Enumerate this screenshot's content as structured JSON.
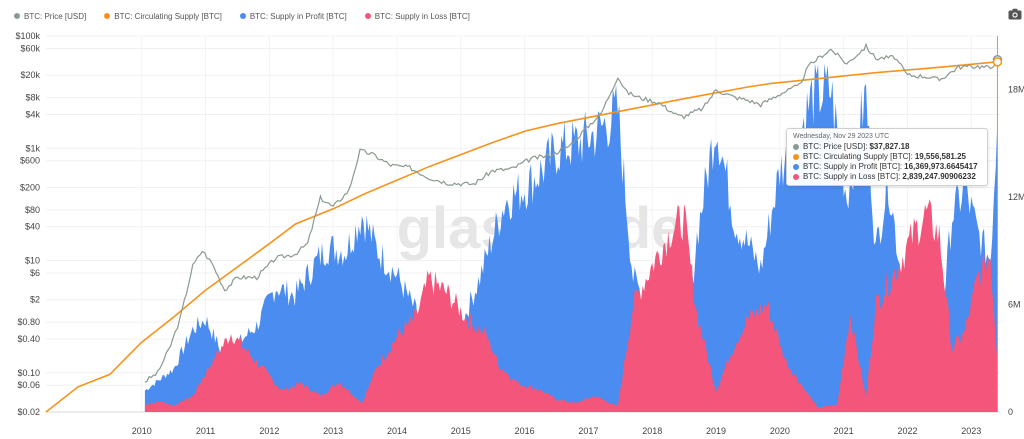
{
  "watermark": "glassnode",
  "colors": {
    "price": "#8a9a8e",
    "supply": "#f7931a",
    "profit": "#4a8cf0",
    "loss": "#f4557a",
    "cursor": "#f7931a"
  },
  "legend": {
    "items": [
      {
        "label": "BTC: Price [USD]",
        "color": "#8a9a8e"
      },
      {
        "label": "BTC: Circulating Supply [BTC]",
        "color": "#f7931a"
      },
      {
        "label": "BTC: Supply in Profit [BTC]",
        "color": "#4a8cf0"
      },
      {
        "label": "BTC: Supply in Loss [BTC]",
        "color": "#f4557a"
      }
    ]
  },
  "tooltip": {
    "date": "Wednesday, Nov 29 2023 UTC",
    "rows": [
      {
        "label": "BTC: Price [USD]:",
        "value": "$37,827.18",
        "color": "#8a9a8e"
      },
      {
        "label": "BTC: Circulating Supply [BTC]:",
        "value": "19,556,581.25",
        "color": "#f7931a"
      },
      {
        "label": "BTC: Supply in Profit [BTC]:",
        "value": "16,369,973.6645417",
        "color": "#4a8cf0"
      },
      {
        "label": "BTC: Supply in Loss [BTC]:",
        "value": "2,839,247.90906232",
        "color": "#f4557a"
      }
    ]
  },
  "chart_data": {
    "type": "area",
    "x_axis": {
      "ticks": [
        "2010",
        "2011",
        "2012",
        "2013",
        "2014",
        "2015",
        "2016",
        "2017",
        "2018",
        "2019",
        "2020",
        "2021",
        "2022",
        "2023"
      ],
      "range": [
        2009.0,
        2023.95
      ]
    },
    "left_axis": {
      "scale": "log",
      "ticks": [
        "$100k",
        "$60k",
        "$20k",
        "$8k",
        "$4k",
        "$1k",
        "$600",
        "$200",
        "$80",
        "$40",
        "$10",
        "$6",
        "$2",
        "$0.80",
        "$0.40",
        "$0.10",
        "$0.06",
        "$0.02"
      ],
      "range": [
        0.02,
        100000
      ]
    },
    "right_axis": {
      "scale": "linear",
      "ticks": [
        "18M",
        "12M",
        "6M",
        "0"
      ],
      "range": [
        0,
        21000000
      ]
    },
    "grid": true,
    "legend_position": "top-left",
    "series": [
      {
        "name": "BTC: Price [USD]",
        "axis": "left",
        "x": [
          2010.55,
          2010.75,
          2010.95,
          2011.1,
          2011.3,
          2011.45,
          2011.6,
          2011.8,
          2012.0,
          2012.3,
          2012.6,
          2012.9,
          2013.1,
          2013.3,
          2013.5,
          2013.75,
          2013.92,
          2014.1,
          2014.4,
          2014.7,
          2015.0,
          2015.3,
          2015.7,
          2016.0,
          2016.3,
          2016.6,
          2016.9,
          2017.2,
          2017.5,
          2017.7,
          2017.85,
          2017.96,
          2018.1,
          2018.3,
          2018.6,
          2018.9,
          2019.0,
          2019.3,
          2019.5,
          2019.8,
          2020.0,
          2020.2,
          2020.5,
          2020.8,
          2020.95,
          2021.1,
          2021.3,
          2021.55,
          2021.85,
          2022.0,
          2022.3,
          2022.5,
          2022.8,
          2023.0,
          2023.3,
          2023.6,
          2023.8,
          2023.91
        ],
        "values": [
          0.07,
          0.1,
          0.3,
          0.9,
          8,
          15,
          9,
          3,
          5,
          5,
          11,
          13,
          20,
          130,
          90,
          180,
          900,
          800,
          500,
          450,
          300,
          240,
          230,
          400,
          430,
          650,
          750,
          1100,
          2500,
          4200,
          10000,
          19000,
          10000,
          8000,
          6500,
          3800,
          3700,
          5200,
          11000,
          8000,
          7200,
          6000,
          9300,
          13000,
          29000,
          40000,
          58000,
          32000,
          65000,
          40000,
          42000,
          20000,
          19000,
          16500,
          28000,
          29000,
          27000,
          37827.18
        ]
      },
      {
        "name": "BTC: Circulating Supply [BTC]",
        "axis": "right",
        "x": [
          2009.0,
          2009.5,
          2010.0,
          2010.5,
          2011.0,
          2011.5,
          2012.0,
          2012.5,
          2012.91,
          2013.5,
          2014.0,
          2015.0,
          2016.0,
          2016.52,
          2017.0,
          2018.0,
          2019.0,
          2020.0,
          2020.36,
          2021.0,
          2022.0,
          2023.0,
          2023.91
        ],
        "values": [
          0,
          1400000,
          2100000,
          3900000,
          5300000,
          6800000,
          8100000,
          9400000,
          10500000,
          11350000,
          12200000,
          13700000,
          15050000,
          15700000,
          16100000,
          16800000,
          17500000,
          18150000,
          18350000,
          18580000,
          18950000,
          19250000,
          19556581.25
        ]
      },
      {
        "name": "BTC: Supply in Profit [BTC]",
        "axis": "right",
        "x": [
          2010.55,
          2010.7,
          2011.0,
          2011.3,
          2011.5,
          2011.8,
          2012.0,
          2012.3,
          2012.6,
          2012.9,
          2013.2,
          2013.4,
          2013.7,
          2013.95,
          2014.2,
          2014.5,
          2014.8,
          2015.0,
          2015.2,
          2015.5,
          2015.8,
          2016.0,
          2016.2,
          2016.5,
          2016.8,
          2017.0,
          2017.3,
          2017.6,
          2017.96,
          2018.2,
          2018.5,
          2018.8,
          2019.0,
          2019.2,
          2019.5,
          2019.8,
          2020.0,
          2020.2,
          2020.5,
          2020.8,
          2021.0,
          2021.3,
          2021.55,
          2021.85,
          2022.0,
          2022.2,
          2022.5,
          2022.8,
          2023.0,
          2023.2,
          2023.4,
          2023.6,
          2023.8,
          2023.91
        ],
        "values": [
          1200000,
          1600000,
          2400000,
          4600000,
          5200000,
          3000000,
          3800000,
          4800000,
          7000000,
          6500000,
          8200000,
          9200000,
          9000000,
          11000000,
          9000000,
          7600000,
          5600000,
          2600000,
          3200000,
          4800000,
          7500000,
          9800000,
          11800000,
          12500000,
          13600000,
          14600000,
          15000000,
          15500000,
          16800000,
          7500000,
          5500000,
          4800000,
          2600000,
          9800000,
          16200000,
          10500000,
          9400000,
          8000000,
          13500000,
          15500000,
          17600000,
          18000000,
          12000000,
          17800000,
          9000000,
          13000000,
          5000000,
          3600000,
          4000000,
          11000000,
          12500000,
          10000000,
          8500000,
          16369973.66
        ]
      },
      {
        "name": "BTC: Supply in Loss [BTC]",
        "axis": "right",
        "x": [
          2010.55,
          2010.8,
          2011.0,
          2011.3,
          2011.6,
          2011.9,
          2012.1,
          2012.4,
          2012.7,
          2013.0,
          2013.3,
          2013.6,
          2013.95,
          2014.2,
          2014.5,
          2014.8,
          2015.0,
          2015.3,
          2015.6,
          2015.9,
          2016.1,
          2016.4,
          2016.7,
          2017.0,
          2017.3,
          2017.6,
          2017.96,
          2018.2,
          2018.5,
          2018.8,
          2019.0,
          2019.2,
          2019.5,
          2019.8,
          2020.0,
          2020.3,
          2020.6,
          2020.9,
          2021.1,
          2021.4,
          2021.6,
          2021.85,
          2022.0,
          2022.3,
          2022.6,
          2022.8,
          2023.0,
          2023.2,
          2023.4,
          2023.6,
          2023.8,
          2023.91
        ],
        "values": [
          400000,
          600000,
          350000,
          900000,
          2800000,
          4400000,
          3600000,
          2400000,
          1200000,
          1600000,
          900000,
          1700000,
          500000,
          2600000,
          4200000,
          5300000,
          7400000,
          6600000,
          5200000,
          4300000,
          2600000,
          1600000,
          1300000,
          700000,
          500000,
          900000,
          300000,
          6000000,
          8200000,
          10200000,
          10800000,
          5500000,
          1200000,
          3900000,
          5200000,
          6000000,
          2800000,
          1200000,
          250000,
          400000,
          5500000,
          800000,
          6000000,
          7800000,
          10000000,
          11100000,
          9800000,
          3500000,
          4500000,
          7500000,
          8800000,
          2839247.91
        ]
      }
    ]
  }
}
